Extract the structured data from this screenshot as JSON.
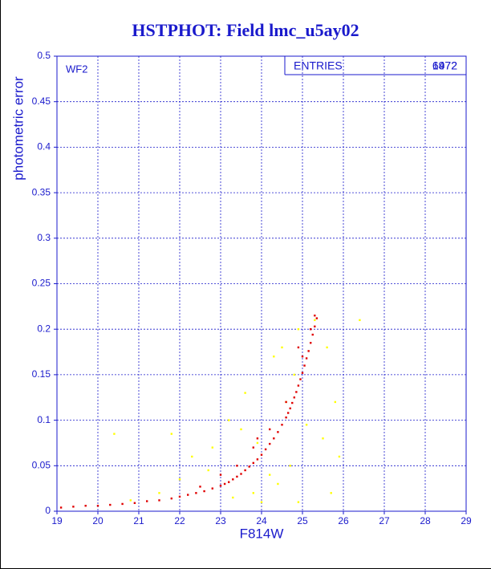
{
  "chart_data": {
    "type": "scatter",
    "title": "HSTPHOT: Field lmc_u5ay02",
    "x_label": "F814W",
    "y_label": "photometric error",
    "annotation": "WF2",
    "stats": {
      "label": "ENTRIES",
      "values": [
        "1972",
        "6472"
      ]
    },
    "xlim": [
      19,
      29
    ],
    "xticks": [
      19,
      20,
      21,
      22,
      23,
      24,
      25,
      26,
      27,
      28,
      29
    ],
    "ylim": [
      0,
      0.5
    ],
    "yticks": [
      0,
      0.05,
      0.1,
      0.15,
      0.2,
      0.25,
      0.3,
      0.35,
      0.4,
      0.45,
      0.5
    ],
    "grid": true,
    "series": [
      {
        "color": "#e00000",
        "x": [
          19.1,
          19.4,
          19.7,
          20.0,
          20.3,
          20.6,
          20.9,
          21.2,
          21.5,
          21.8,
          22.0,
          22.2,
          22.4,
          22.6,
          22.8,
          23.0,
          23.1,
          23.2,
          23.3,
          23.4,
          23.5,
          23.6,
          23.7,
          23.8,
          23.9,
          24.0,
          24.1,
          24.2,
          24.3,
          24.4,
          24.5,
          24.6,
          24.65,
          24.7,
          24.75,
          24.8,
          24.85,
          24.9,
          24.95,
          25.0,
          25.05,
          25.1,
          25.15,
          25.2,
          25.25,
          25.3,
          25.35,
          22.5,
          23.0,
          23.4,
          23.8,
          24.2,
          24.6,
          25.0,
          25.3,
          24.9,
          25.2,
          23.9
        ],
        "values": [
          0.004,
          0.005,
          0.006,
          0.006,
          0.007,
          0.008,
          0.009,
          0.011,
          0.012,
          0.014,
          0.016,
          0.018,
          0.02,
          0.022,
          0.025,
          0.028,
          0.03,
          0.032,
          0.035,
          0.038,
          0.041,
          0.045,
          0.049,
          0.053,
          0.057,
          0.062,
          0.068,
          0.074,
          0.08,
          0.087,
          0.095,
          0.103,
          0.108,
          0.113,
          0.119,
          0.125,
          0.131,
          0.138,
          0.145,
          0.152,
          0.16,
          0.168,
          0.176,
          0.185,
          0.194,
          0.203,
          0.212,
          0.027,
          0.04,
          0.05,
          0.07,
          0.09,
          0.12,
          0.17,
          0.215,
          0.18,
          0.2,
          0.08
        ]
      },
      {
        "color": "#ffff00",
        "x": [
          20.4,
          21.8,
          22.3,
          22.8,
          23.2,
          23.5,
          23.9,
          24.2,
          24.4,
          24.6,
          24.8,
          24.5,
          24.9,
          25.3,
          25.6,
          25.8,
          25.5,
          25.9,
          24.0,
          23.8,
          23.3,
          22.0,
          21.5,
          20.8,
          24.7,
          25.1,
          26.4,
          23.6,
          24.3,
          25.7,
          24.9,
          22.7
        ],
        "values": [
          0.085,
          0.085,
          0.06,
          0.07,
          0.1,
          0.09,
          0.075,
          0.04,
          0.03,
          0.12,
          0.15,
          0.18,
          0.2,
          0.21,
          0.18,
          0.12,
          0.08,
          0.06,
          0.01,
          0.02,
          0.015,
          0.035,
          0.02,
          0.012,
          0.05,
          0.095,
          0.21,
          0.13,
          0.17,
          0.02,
          0.01,
          0.045
        ]
      }
    ]
  }
}
